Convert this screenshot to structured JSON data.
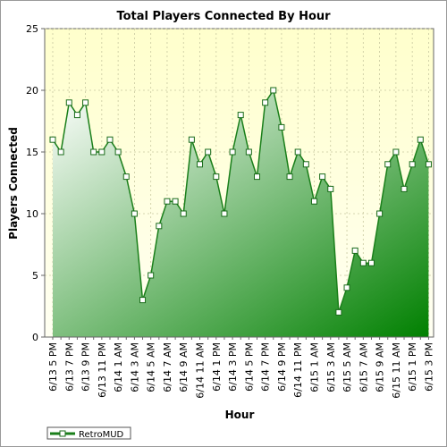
{
  "chart_data": {
    "type": "area",
    "title": "Total Players Connected By Hour",
    "xlabel": "Hour",
    "ylabel": "Players Connected",
    "ylim": [
      0,
      25
    ],
    "yticks": [
      0,
      5,
      10,
      15,
      20,
      25
    ],
    "grid": true,
    "legend_position": "bottom-left",
    "colors": {
      "line": "#1a7f1a",
      "area_light": "#ffffff",
      "area_dark": "#008000",
      "plot_bg_top": "#ffffcc",
      "plot_bg_bottom": "#fffff2",
      "marker_fill": "#ffffff",
      "marker_stroke": "#1a6b1a"
    },
    "x": [
      "6/13 5 PM",
      "6/13 6 PM",
      "6/13 7 PM",
      "6/13 8 PM",
      "6/13 9 PM",
      "6/13 10 PM",
      "6/13 11 PM",
      "6/14 12 AM",
      "6/14 1 AM",
      "6/14 2 AM",
      "6/14 3 AM",
      "6/14 4 AM",
      "6/14 5 AM",
      "6/14 6 AM",
      "6/14 7 AM",
      "6/14 8 AM",
      "6/14 9 AM",
      "6/14 10 AM",
      "6/14 11 AM",
      "6/14 12 PM",
      "6/14 1 PM",
      "6/14 2 PM",
      "6/14 3 PM",
      "6/14 4 PM",
      "6/14 5 PM",
      "6/14 6 PM",
      "6/14 7 PM",
      "6/14 8 PM",
      "6/14 9 PM",
      "6/14 10 PM",
      "6/14 11 PM",
      "6/15 12 AM",
      "6/15 1 AM",
      "6/15 2 AM",
      "6/15 3 AM",
      "6/15 4 AM",
      "6/15 5 AM",
      "6/15 6 AM",
      "6/15 7 AM",
      "6/15 8 AM",
      "6/15 9 AM",
      "6/15 10 AM",
      "6/15 11 AM",
      "6/15 12 PM",
      "6/15 1 PM",
      "6/15 2 PM",
      "6/15 3 PM"
    ],
    "xtick_labels": [
      "6/13 5 PM",
      "6/13 7 PM",
      "6/13 9 PM",
      "6/13 11 PM",
      "6/14 1 AM",
      "6/14 3 AM",
      "6/14 5 AM",
      "6/14 7 AM",
      "6/14 9 AM",
      "6/14 11 AM",
      "6/14 1 PM",
      "6/14 3 PM",
      "6/14 5 PM",
      "6/14 7 PM",
      "6/14 9 PM",
      "6/14 11 PM",
      "6/15 1 AM",
      "6/15 3 AM",
      "6/15 5 AM",
      "6/15 7 AM",
      "6/15 9 AM",
      "6/15 11 AM",
      "6/15 1 PM",
      "6/15 3 PM"
    ],
    "series": [
      {
        "name": "RetroMUD",
        "values": [
          16,
          15,
          19,
          18,
          19,
          15,
          15,
          16,
          15,
          13,
          10,
          3,
          5,
          9,
          11,
          11,
          10,
          16,
          14,
          15,
          13,
          10,
          15,
          18,
          15,
          13,
          19,
          20,
          17,
          13,
          15,
          14,
          11,
          13,
          12,
          2,
          4,
          7,
          6,
          6,
          10,
          14,
          15,
          12,
          14,
          16,
          14
        ]
      }
    ]
  }
}
